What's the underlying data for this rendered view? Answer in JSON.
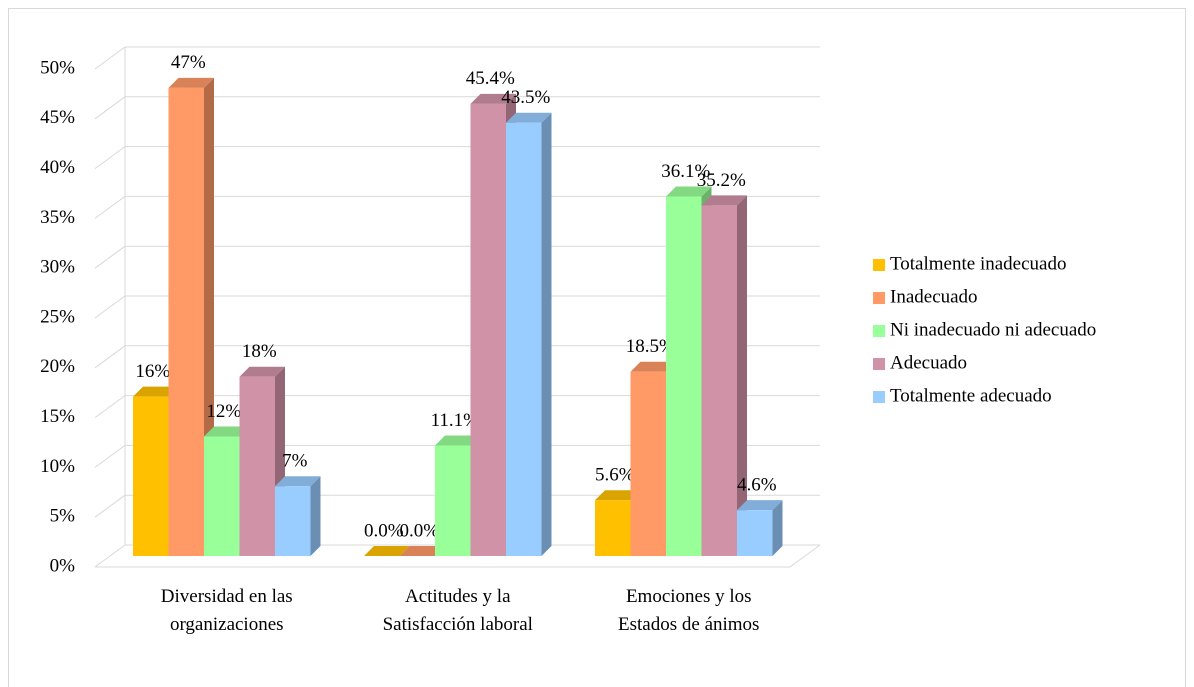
{
  "chart_data": {
    "type": "bar3d",
    "categories": [
      "Diversidad en las organizaciones",
      "Actitudes y la Satisfacción laboral",
      "Emociones y los Estados de ánimos"
    ],
    "series": [
      {
        "name": "Totalmente inadecuado",
        "color": "#FFC000",
        "values": [
          16,
          0,
          5.6
        ],
        "value_labels": [
          "16%",
          "0.0%",
          "5.6%"
        ]
      },
      {
        "name": "Inadecuado",
        "color": "#FF9966",
        "values": [
          47,
          0,
          18.5
        ],
        "value_labels": [
          "47%",
          "0.0%",
          "18.5%"
        ]
      },
      {
        "name": "Ni inadecuado ni adecuado",
        "color": "#99FF99",
        "values": [
          12,
          11.1,
          36.1
        ],
        "value_labels": [
          "12%",
          "11.1%",
          "36.1%"
        ]
      },
      {
        "name": "Adecuado",
        "color": "#D092A7",
        "values": [
          18,
          45.4,
          35.2
        ],
        "value_labels": [
          "18%",
          "45.4%",
          "35.2%"
        ]
      },
      {
        "name": "Totalmente adecuado",
        "color": "#99CCFF",
        "values": [
          7,
          43.5,
          4.6
        ],
        "value_labels": [
          "7%",
          "43.5%",
          "4.6%"
        ]
      }
    ],
    "ylim": [
      0,
      50
    ],
    "yticks": [
      {
        "value": 0,
        "label": "0%"
      },
      {
        "value": 5,
        "label": "5%"
      },
      {
        "value": 10,
        "label": "10%"
      },
      {
        "value": 15,
        "label": "15%"
      },
      {
        "value": 20,
        "label": "20%"
      },
      {
        "value": 25,
        "label": "25%"
      },
      {
        "value": 30,
        "label": "30%"
      },
      {
        "value": 35,
        "label": "35%"
      },
      {
        "value": 40,
        "label": "40%"
      },
      {
        "value": 45,
        "label": "45%"
      },
      {
        "value": 50,
        "label": "50%"
      }
    ],
    "grid": true,
    "legend": "right"
  }
}
